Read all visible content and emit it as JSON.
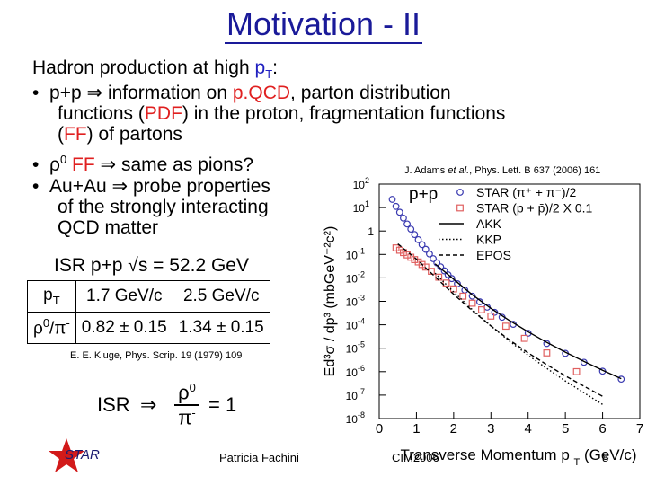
{
  "slide": {
    "title": "Motivation - II",
    "heading": {
      "text": "Hadron production at high ",
      "pt": "p",
      "pt_sub": "T",
      "colon": ":"
    },
    "bullets": [
      {
        "pre": "p+p",
        "arrow": "⇒",
        "t1": " information on ",
        "red1": "p.QCD",
        "t2": ", parton distribution",
        "line2_pre": "functions (",
        "red2": "PDF",
        "line2_post": ") in the proton, fragmentation functions",
        "line3_pre": "(",
        "red3": "FF",
        "line3_post": ") of partons"
      },
      {
        "rho": "ρ",
        "sup": "0",
        "red": " FF ",
        "arrow": "⇒",
        "rest": " same as pions?"
      },
      {
        "pre": "Au+Au ",
        "arrow": "⇒",
        "rest": " probe properties",
        "line2": "of the strongly interacting",
        "line3": "QCD matter"
      }
    ],
    "reference_top": {
      "authors": "J. Adams ",
      "etal": "et al.",
      "journal": ", Phys. Lett. B 637 (2006) 161"
    },
    "isr_heading": "ISR p+p √s = 52.2 GeV",
    "isr_table": {
      "row1": {
        "label_main": "p",
        "label_sub": "T",
        "c1": "1.7 GeV/c",
        "c2": "2.5 GeV/c"
      },
      "row2": {
        "label_main": "ρ",
        "label_sup": "0",
        "label_rest": "/π",
        "label_sup2": "-",
        "c1": "0.82 ± 0.15",
        "c2": "1.34 ± 0.15"
      }
    },
    "reference_bottom": "E. E. Kluge, Phys. Scrip. 19 (1979) 109",
    "formula": {
      "left": "ISR",
      "arrow": "⇒",
      "num": "ρ",
      "num_sup": "0",
      "den": "π",
      "den_sup": "-",
      "rhs": "= 1"
    },
    "footer": {
      "logo_text": "STAR",
      "author": "Patricia Fachini",
      "event": "CIM2006",
      "page": "8"
    }
  },
  "chart_data": {
    "type": "scatter",
    "title": "p+p",
    "xlabel": "Transverse Momentum p",
    "xlabel_sub": "T",
    "xlabel_unit": "(GeV/c)",
    "ylabel": "Ed³σ / dp³ (mbGeV⁻²c²)",
    "xlim": [
      0,
      7
    ],
    "ylim_log10": [
      -8,
      2
    ],
    "x_ticks": [
      "0",
      "1",
      "2",
      "3",
      "4",
      "5",
      "6",
      "7"
    ],
    "y_ticks": [
      {
        "base": "10",
        "exp": "2"
      },
      {
        "base": "10",
        "exp": "1"
      },
      {
        "base": "1",
        "exp": ""
      },
      {
        "base": "10",
        "exp": "-1"
      },
      {
        "base": "10",
        "exp": "-2"
      },
      {
        "base": "10",
        "exp": "-3"
      },
      {
        "base": "10",
        "exp": "-4"
      },
      {
        "base": "10",
        "exp": "-5"
      },
      {
        "base": "10",
        "exp": "-6"
      },
      {
        "base": "10",
        "exp": "-7"
      },
      {
        "base": "10",
        "exp": "-8"
      }
    ],
    "series": [
      {
        "name": "STAR (π⁺ + π⁻)/2",
        "marker": "circle",
        "color": "#3a3ab0",
        "x": [
          0.35,
          0.45,
          0.55,
          0.65,
          0.75,
          0.85,
          0.95,
          1.05,
          1.15,
          1.25,
          1.35,
          1.45,
          1.55,
          1.65,
          1.75,
          1.85,
          1.95,
          2.1,
          2.3,
          2.5,
          2.7,
          2.9,
          3.1,
          3.3,
          3.6,
          4.0,
          4.5,
          5.0,
          5.5,
          6.0,
          6.5
        ],
        "log10_y": [
          1.35,
          1.05,
          0.8,
          0.55,
          0.3,
          0.08,
          -0.15,
          -0.37,
          -0.58,
          -0.78,
          -0.98,
          -1.18,
          -1.36,
          -1.53,
          -1.7,
          -1.87,
          -2.03,
          -2.25,
          -2.52,
          -2.78,
          -3.02,
          -3.25,
          -3.47,
          -3.68,
          -3.98,
          -4.36,
          -4.8,
          -5.22,
          -5.6,
          -5.98,
          -6.32
        ]
      },
      {
        "name": "STAR (p + p̄)/2 X 0.1",
        "marker": "square",
        "color": "#e06060",
        "x": [
          0.45,
          0.55,
          0.65,
          0.75,
          0.85,
          0.95,
          1.05,
          1.15,
          1.25,
          1.4,
          1.6,
          1.8,
          2.0,
          2.25,
          2.5,
          2.75,
          3.0,
          3.4,
          3.9,
          4.5,
          5.3
        ],
        "log10_y": [
          -0.72,
          -0.82,
          -0.92,
          -1.02,
          -1.12,
          -1.22,
          -1.32,
          -1.43,
          -1.54,
          -1.72,
          -1.97,
          -2.22,
          -2.47,
          -2.78,
          -3.08,
          -3.36,
          -3.63,
          -4.06,
          -4.58,
          -5.2,
          -6.0
        ]
      },
      {
        "name": "AKK",
        "style": "solid",
        "color": "#000000",
        "x": [
          1.5,
          2.0,
          2.5,
          3.0,
          3.5,
          4.0,
          4.5,
          5.0,
          5.5,
          6.0,
          6.5
        ],
        "log10_y": [
          -1.4,
          -2.06,
          -2.72,
          -3.3,
          -3.82,
          -4.3,
          -4.75,
          -5.17,
          -5.56,
          -5.94,
          -6.3
        ]
      },
      {
        "name": "KKP",
        "style": "dotted",
        "color": "#000000",
        "x": [
          1.5,
          2.0,
          2.5,
          3.0,
          3.5,
          4.0,
          4.5,
          5.0,
          5.5,
          6.0
        ],
        "log10_y": [
          -1.8,
          -2.6,
          -3.35,
          -4.05,
          -4.7,
          -5.3,
          -5.86,
          -6.4,
          -6.9,
          -7.4
        ]
      },
      {
        "name": "EPOS",
        "style": "dashed",
        "color": "#000000",
        "x": [
          0.5,
          1.0,
          1.5,
          2.0,
          2.5,
          3.0,
          3.5,
          4.0,
          4.5,
          5.0,
          5.5,
          6.0
        ],
        "log10_y": [
          -0.55,
          -1.2,
          -1.95,
          -2.7,
          -3.4,
          -4.05,
          -4.65,
          -5.2,
          -5.7,
          -6.18,
          -6.62,
          -7.05
        ]
      }
    ],
    "legend_position": "top-right"
  }
}
